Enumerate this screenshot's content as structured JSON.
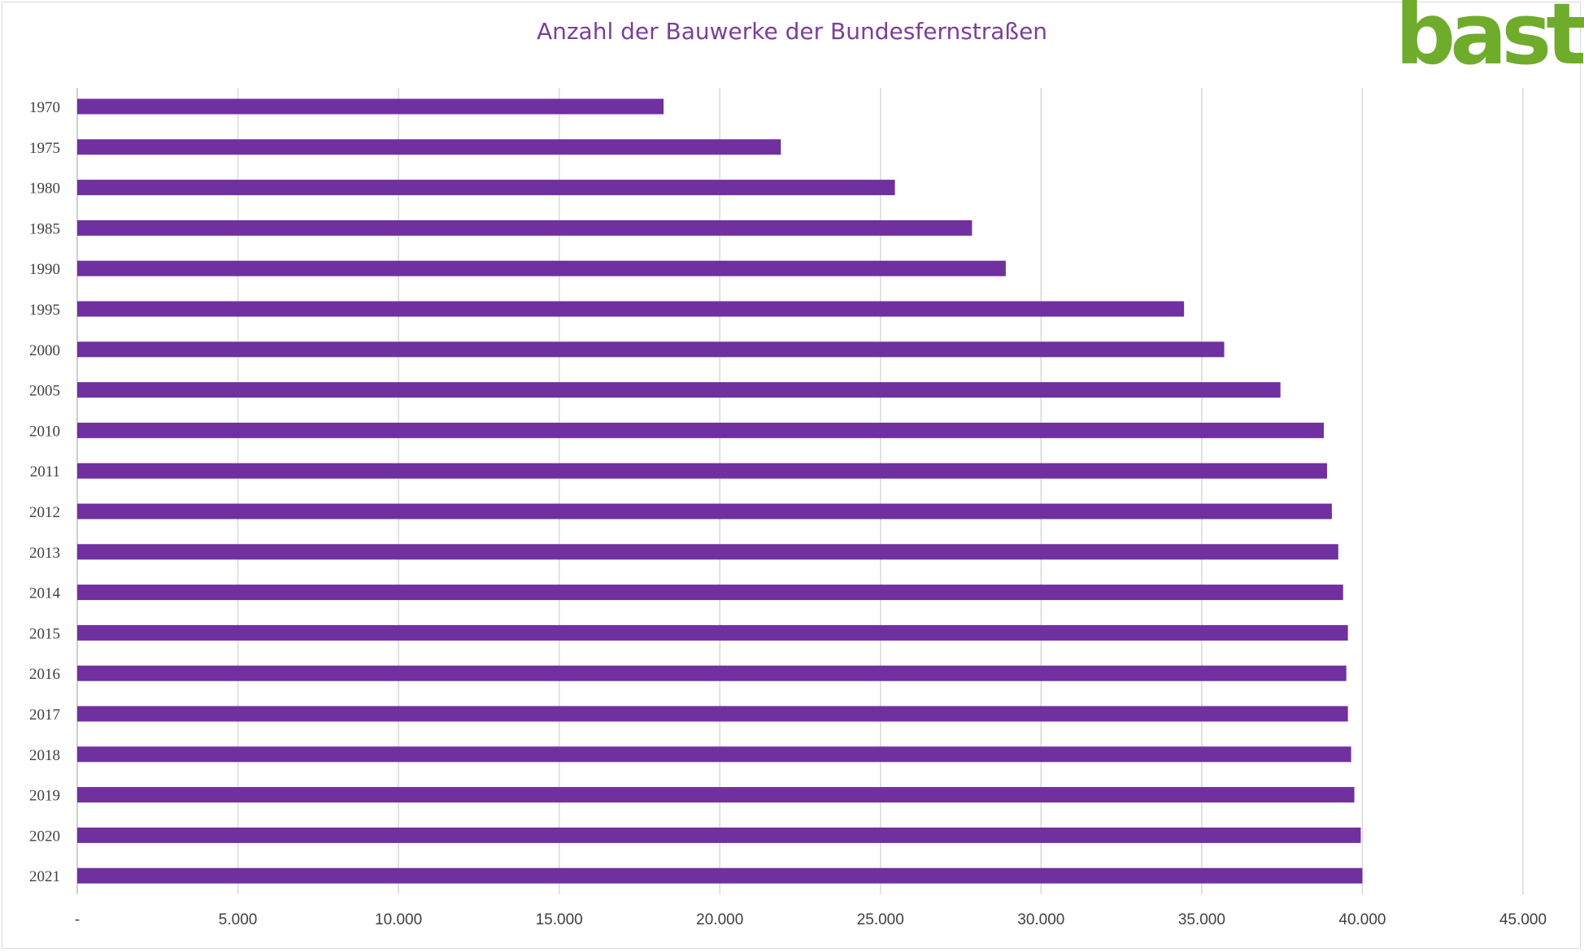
{
  "colors": {
    "bar": "#7030a0",
    "title": "#7b3f98",
    "grid": "#d9d9d9",
    "logo": "#6fac2c"
  },
  "logo_text": "bast",
  "chart_data": {
    "type": "bar",
    "orientation": "horizontal",
    "title": "Anzahl der Bauwerke der Bundesfernstraßen",
    "xlabel": "",
    "ylabel": "",
    "xlim": [
      0,
      45000
    ],
    "x_ticks": [
      0,
      5000,
      10000,
      15000,
      20000,
      25000,
      30000,
      35000,
      40000,
      45000
    ],
    "x_tick_labels": [
      "-",
      "5.000",
      "10.000",
      "15.000",
      "20.000",
      "25.000",
      "30.000",
      "35.000",
      "40.000",
      "45.000"
    ],
    "grid": true,
    "legend": "none",
    "categories": [
      "1970",
      "1975",
      "1980",
      "1985",
      "1990",
      "1995",
      "2000",
      "2005",
      "2010",
      "2011",
      "2012",
      "2013",
      "2014",
      "2015",
      "2016",
      "2017",
      "2018",
      "2019",
      "2020",
      "2021"
    ],
    "values": [
      18250,
      21900,
      25450,
      27850,
      28900,
      34450,
      35700,
      37450,
      38800,
      38900,
      39050,
      39250,
      39400,
      39550,
      39500,
      39550,
      39650,
      39750,
      39950,
      40000
    ]
  }
}
